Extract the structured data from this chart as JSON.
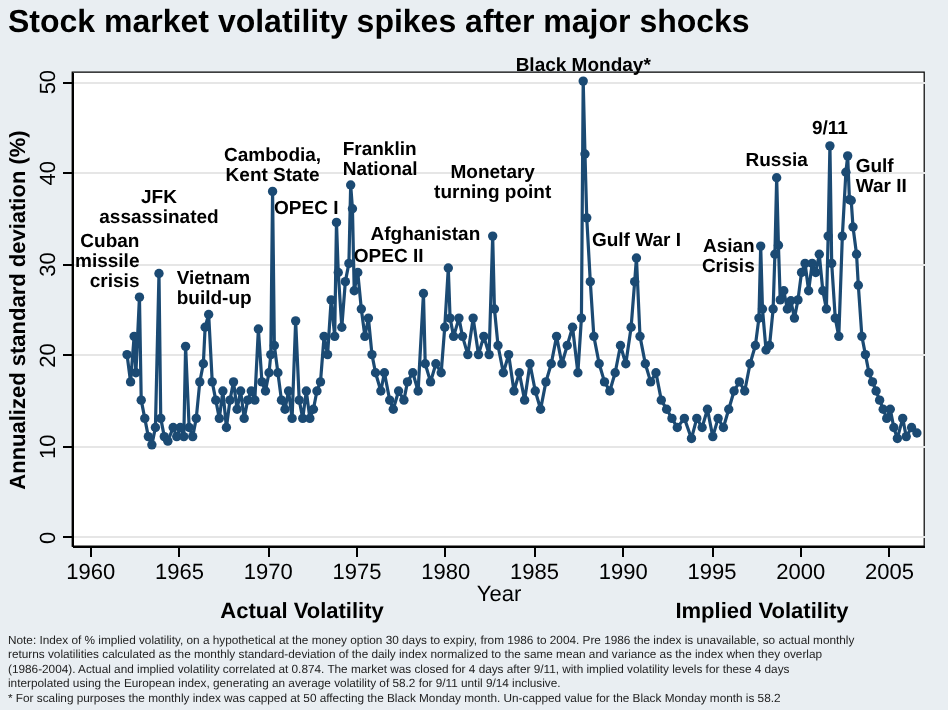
{
  "chart_data": {
    "type": "line",
    "title": "Stock market volatility spikes after major shocks",
    "xlabel": "Year",
    "ylabel": "Annualized standard deviation (%)",
    "xlim": [
      1959,
      2007
    ],
    "ylim": [
      -1,
      51
    ],
    "xticks": [
      1960,
      1965,
      1970,
      1975,
      1980,
      1985,
      1990,
      1995,
      2000,
      2005
    ],
    "yticks": [
      0,
      10,
      20,
      30,
      40,
      50
    ],
    "grid": "y",
    "marker": "circle",
    "line_style": "solid",
    "series": [
      {
        "color": "#1b4a73",
        "x": [
          1962.1,
          1962.3,
          1962.5,
          1962.6,
          1962.8,
          1962.9,
          1963.1,
          1963.3,
          1963.5,
          1963.7,
          1963.9,
          1964.0,
          1964.2,
          1964.4,
          1964.7,
          1964.9,
          1965.1,
          1965.3,
          1965.4,
          1965.6,
          1965.8,
          1966.0,
          1966.2,
          1966.4,
          1966.5,
          1966.7,
          1966.9,
          1967.1,
          1967.3,
          1967.5,
          1967.7,
          1967.9,
          1968.1,
          1968.3,
          1968.5,
          1968.7,
          1968.9,
          1969.1,
          1969.3,
          1969.5,
          1969.7,
          1969.9,
          1970.1,
          1970.2,
          1970.3,
          1970.4,
          1970.6,
          1970.8,
          1971.0,
          1971.2,
          1971.4,
          1971.6,
          1971.8,
          1972.0,
          1972.2,
          1972.4,
          1972.6,
          1972.8,
          1973.0,
          1973.2,
          1973.4,
          1973.6,
          1973.8,
          1973.9,
          1974.0,
          1974.2,
          1974.4,
          1974.6,
          1974.7,
          1974.8,
          1974.9,
          1975.1,
          1975.3,
          1975.5,
          1975.7,
          1975.9,
          1976.1,
          1976.4,
          1976.6,
          1976.9,
          1977.1,
          1977.4,
          1977.7,
          1977.9,
          1978.2,
          1978.5,
          1978.8,
          1978.9,
          1979.2,
          1979.5,
          1979.8,
          1980.0,
          1980.2,
          1980.3,
          1980.5,
          1980.8,
          1981.0,
          1981.3,
          1981.6,
          1981.9,
          1982.2,
          1982.5,
          1982.7,
          1982.8,
          1983.0,
          1983.3,
          1983.6,
          1983.9,
          1984.2,
          1984.5,
          1984.8,
          1985.1,
          1985.4,
          1985.7,
          1986.0,
          1986.3,
          1986.6,
          1986.9,
          1987.2,
          1987.5,
          1987.7,
          1987.8,
          1987.9,
          1988.0,
          1988.2,
          1988.4,
          1988.7,
          1989.0,
          1989.3,
          1989.6,
          1989.9,
          1990.2,
          1990.5,
          1990.7,
          1990.8,
          1991.0,
          1991.3,
          1991.6,
          1991.9,
          1992.2,
          1992.5,
          1992.8,
          1993.1,
          1993.5,
          1993.9,
          1994.2,
          1994.5,
          1994.8,
          1995.1,
          1995.4,
          1995.7,
          1996.0,
          1996.3,
          1996.6,
          1996.9,
          1997.2,
          1997.5,
          1997.7,
          1997.8,
          1997.9,
          1998.1,
          1998.3,
          1998.5,
          1998.6,
          1998.7,
          1998.8,
          1998.9,
          1999.1,
          1999.3,
          1999.5,
          1999.7,
          1999.9,
          2000.1,
          2000.3,
          2000.5,
          2000.7,
          2000.9,
          2001.1,
          2001.3,
          2001.5,
          2001.6,
          2001.7,
          2001.8,
          2002.0,
          2002.2,
          2002.4,
          2002.6,
          2002.7,
          2002.8,
          2002.9,
          2003.0,
          2003.2,
          2003.3,
          2003.5,
          2003.7,
          2003.9,
          2004.1,
          2004.3,
          2004.5,
          2004.7,
          2004.9,
          2005.1,
          2005.3,
          2005.5,
          2005.8,
          2006.0,
          2006.3,
          2006.6
        ],
        "values": [
          20,
          17,
          22,
          18,
          26.3,
          15,
          13,
          11,
          10.1,
          12,
          28.9,
          13,
          11,
          10.5,
          12,
          11,
          12,
          11,
          20.9,
          12,
          11,
          13,
          17,
          19,
          23,
          24.4,
          17,
          15,
          13,
          16,
          12,
          15,
          17,
          14,
          16,
          13,
          15,
          16,
          15,
          22.8,
          17,
          16,
          18,
          20,
          37.9,
          21,
          18,
          15,
          14,
          16,
          13,
          23.7,
          15,
          13,
          16,
          13,
          14,
          16,
          17,
          22,
          20,
          26,
          22,
          34.5,
          29,
          23,
          28,
          30,
          38.6,
          36,
          27,
          29,
          25,
          22,
          24,
          20,
          18,
          16,
          18,
          15,
          14,
          16,
          15,
          17,
          18,
          16,
          26.7,
          19,
          17,
          19,
          18,
          23,
          29.5,
          24,
          22,
          24,
          22,
          20,
          24,
          20,
          22,
          20,
          33,
          25,
          21,
          18,
          20,
          16,
          18,
          15,
          19,
          16,
          14,
          17,
          19,
          22,
          19,
          21,
          23,
          18,
          24,
          50,
          42,
          35,
          28,
          22,
          19,
          17,
          16,
          18,
          21,
          19,
          23,
          28,
          30.6,
          22,
          19,
          17,
          18,
          15,
          14,
          13,
          12,
          13,
          10.8,
          13,
          12,
          14,
          11,
          13,
          12,
          14,
          16,
          17,
          16,
          19,
          21,
          24,
          31.9,
          25,
          20.5,
          21,
          25,
          31,
          39.4,
          32,
          26,
          27,
          25,
          25.9,
          24,
          26,
          29,
          30,
          27,
          30,
          29,
          31,
          27,
          25,
          33,
          42.9,
          30,
          24,
          22,
          33,
          40,
          41.8,
          37,
          36.9,
          34,
          31,
          27.6,
          22,
          20,
          18,
          17,
          16,
          15,
          14,
          13,
          14,
          12,
          10.8,
          13,
          11,
          12,
          11.4
        ]
      }
    ],
    "annotations": [
      {
        "text": "Cuban\nmissile\ncrisis",
        "x": 1962.8,
        "y": 26.3
      },
      {
        "text": "JFK\nassassinated",
        "x": 1963.9,
        "y": 28.9
      },
      {
        "text": "Vietnam\nbuild-up",
        "x": 1966.7,
        "y": 24.4
      },
      {
        "text": "Cambodia,\nKent State",
        "x": 1970.3,
        "y": 37.9
      },
      {
        "text": "OPEC I",
        "x": 1973.9,
        "y": 34.5
      },
      {
        "text": "Franklin\nNational",
        "x": 1974.7,
        "y": 38.6
      },
      {
        "text": "OPEC II",
        "x": 1978.8,
        "y": 26.7
      },
      {
        "text": "Afghanistan",
        "x": 1980.2,
        "y": 29.5
      },
      {
        "text": "Monetary\nturning point",
        "x": 1982.7,
        "y": 33
      },
      {
        "text": "Black Monday*",
        "x": 1987.8,
        "y": 50
      },
      {
        "text": "Gulf War I",
        "x": 1990.8,
        "y": 30.6
      },
      {
        "text": "Asian\nCrisis",
        "x": 1997.8,
        "y": 31.9
      },
      {
        "text": "Russia",
        "x": 1998.7,
        "y": 39.4
      },
      {
        "text": "9/11",
        "x": 2001.7,
        "y": 42.9
      },
      {
        "text": "Gulf\nWar II",
        "x": 2002.7,
        "y": 41.8
      },
      "Actual Volatility",
      "Implied Volatility",
      "Note: Index of % implied volatility, on a hypothetical at the money option 30 days to expiry, from 1986 to 2004. Pre 1986 the index is unavailable, so actual monthly returns volatilities calculated as the monthly standard-deviation of the daily index normalized to the same mean and variance as the index when they overlap (1986-2004). Actual and implied volatility correlated at 0.874. The market was closed for 4 days after 9/11, with implied volatility levels for these 4 days interpolated using the European index, generating an average volatility of 58.2 for 9/11 until 9/14 inclusive.",
      "* For scaling purposes the monthly index was capped at 50 affecting the Black Monday month. Un-capped value for the Black Monday month is 58.2"
    ]
  }
}
